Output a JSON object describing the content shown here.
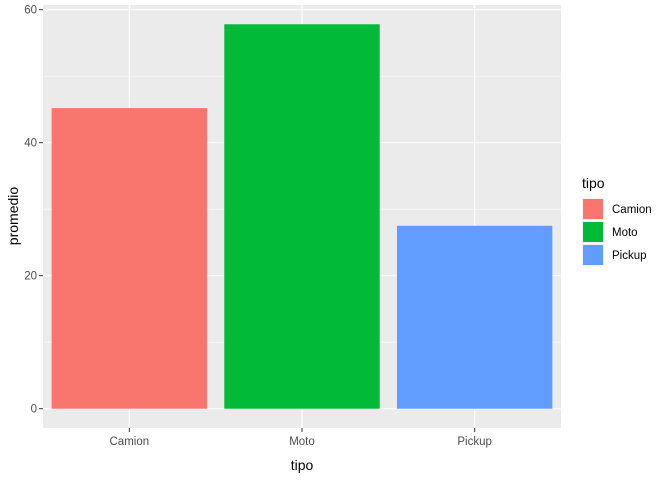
{
  "chart_data": {
    "type": "bar",
    "categories": [
      "Camion",
      "Moto",
      "Pickup"
    ],
    "values": [
      45.2,
      57.8,
      27.5
    ],
    "colors": [
      "#F8766D",
      "#00BA38",
      "#619CFF"
    ],
    "xlabel": "tipo",
    "ylabel": "promedio",
    "ylim": [
      -2.9,
      60.7
    ],
    "yticks": [
      0,
      20,
      40,
      60
    ],
    "grid": true,
    "legend": {
      "title": "tipo",
      "placement": "right",
      "entries": [
        "Camion",
        "Moto",
        "Pickup"
      ]
    }
  }
}
